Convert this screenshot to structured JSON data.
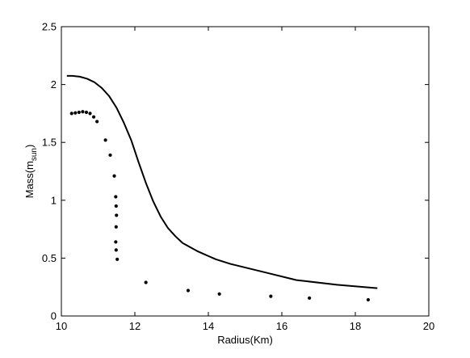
{
  "chart_data": {
    "type": "scatter",
    "title": "",
    "xlabel": "Radius(Km)",
    "ylabel": {
      "base": "Mass(m",
      "subscript": "sun",
      "suffix": ")"
    },
    "xlim": [
      10,
      20
    ],
    "ylim": [
      0,
      2.5
    ],
    "x_ticks": [
      10,
      12,
      14,
      16,
      18,
      20
    ],
    "y_ticks": [
      0,
      0.5,
      1,
      1.5,
      2,
      2.5
    ],
    "x_tick_labels": [
      "10",
      "12",
      "14",
      "16",
      "18",
      "20"
    ],
    "y_tick_labels": [
      "0",
      "0.5",
      "1",
      "1.5",
      "2",
      "2.5"
    ],
    "grid": false,
    "legend": "none",
    "series": [
      {
        "style": "line",
        "color": "#000000",
        "points": [
          [
            10.15,
            2.075
          ],
          [
            10.3,
            2.075
          ],
          [
            10.5,
            2.068
          ],
          [
            10.7,
            2.05
          ],
          [
            10.9,
            2.02
          ],
          [
            11.1,
            1.97
          ],
          [
            11.3,
            1.9
          ],
          [
            11.5,
            1.8
          ],
          [
            11.7,
            1.67
          ],
          [
            11.9,
            1.52
          ],
          [
            12.1,
            1.33
          ],
          [
            12.3,
            1.15
          ],
          [
            12.5,
            0.99
          ],
          [
            12.7,
            0.86
          ],
          [
            12.9,
            0.76
          ],
          [
            13.1,
            0.69
          ],
          [
            13.3,
            0.63
          ],
          [
            13.7,
            0.56
          ],
          [
            14.2,
            0.49
          ],
          [
            14.6,
            0.45
          ],
          [
            15.5,
            0.38
          ],
          [
            16.4,
            0.31
          ],
          [
            17.5,
            0.27
          ],
          [
            18.6,
            0.24
          ]
        ]
      },
      {
        "style": "dots",
        "color": "#000000",
        "points": [
          [
            10.28,
            1.75
          ],
          [
            10.38,
            1.755
          ],
          [
            10.48,
            1.76
          ],
          [
            10.58,
            1.765
          ],
          [
            10.68,
            1.76
          ],
          [
            10.78,
            1.75
          ],
          [
            10.88,
            1.72
          ],
          [
            10.97,
            1.68
          ],
          [
            11.2,
            1.52
          ],
          [
            11.33,
            1.39
          ],
          [
            11.44,
            1.21
          ],
          [
            11.48,
            1.03
          ],
          [
            11.49,
            0.95
          ],
          [
            11.5,
            0.87
          ],
          [
            11.49,
            0.77
          ],
          [
            11.48,
            0.64
          ],
          [
            11.49,
            0.57
          ],
          [
            11.52,
            0.49
          ],
          [
            12.3,
            0.29
          ],
          [
            13.45,
            0.22
          ],
          [
            14.3,
            0.19
          ],
          [
            15.7,
            0.17
          ],
          [
            16.75,
            0.155
          ],
          [
            18.35,
            0.14
          ]
        ]
      }
    ]
  }
}
